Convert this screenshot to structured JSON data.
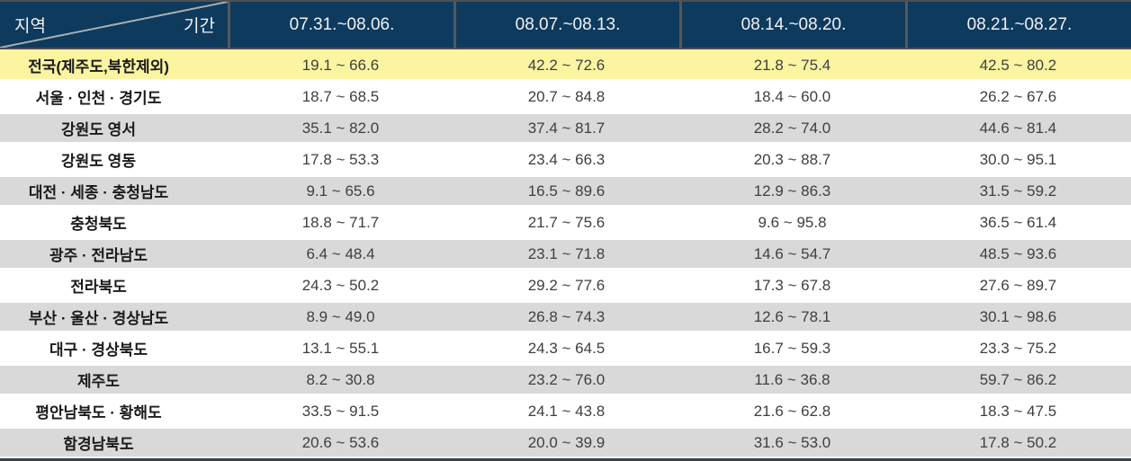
{
  "colors": {
    "header_bg": "#0E3A5E",
    "header_text": "#F2F2F2",
    "dark_border": "#4E5052",
    "separator": "#55585C",
    "diagonal": "#A7ACB1",
    "row_yellow": "#FBF4A1",
    "row_gray": "#D9D9D9",
    "region_text": "#1A1A1A",
    "value_text": "#3F3F3F",
    "bottom_border": "#3E4245"
  },
  "chart_data": {
    "type": "table",
    "corner": {
      "row_dim": "지역",
      "col_dim": "기간"
    },
    "columns": [
      "07.31.~08.06.",
      "08.07.~08.13.",
      "08.14.~08.20.",
      "08.21.~08.27."
    ],
    "rows": [
      {
        "region": "전국(제주도,북한제외)",
        "tone": "yellow",
        "values": [
          "19.1 ~ 66.6",
          "42.2 ~ 72.6",
          "21.8 ~ 75.4",
          "42.5 ~ 80.2"
        ]
      },
      {
        "region": "서울 · 인천 · 경기도",
        "tone": "white",
        "values": [
          "18.7 ~ 68.5",
          "20.7 ~ 84.8",
          "18.4 ~ 60.0",
          "26.2 ~ 67.6"
        ]
      },
      {
        "region": "강원도 영서",
        "tone": "gray",
        "values": [
          "35.1 ~ 82.0",
          "37.4 ~ 81.7",
          "28.2 ~ 74.0",
          "44.6 ~ 81.4"
        ]
      },
      {
        "region": "강원도 영동",
        "tone": "white",
        "values": [
          "17.8 ~ 53.3",
          "23.4 ~ 66.3",
          "20.3 ~ 88.7",
          "30.0 ~ 95.1"
        ]
      },
      {
        "region": "대전 · 세종 · 충청남도",
        "tone": "gray",
        "values": [
          "9.1 ~ 65.6",
          "16.5 ~ 89.6",
          "12.9 ~ 86.3",
          "31.5 ~ 59.2"
        ]
      },
      {
        "region": "충청북도",
        "tone": "white",
        "values": [
          "18.8 ~ 71.7",
          "21.7 ~ 75.6",
          "9.6 ~ 95.8",
          "36.5 ~ 61.4"
        ]
      },
      {
        "region": "광주 · 전라남도",
        "tone": "gray",
        "values": [
          "6.4 ~ 48.4",
          "23.1 ~ 71.8",
          "14.6 ~ 54.7",
          "48.5 ~ 93.6"
        ]
      },
      {
        "region": "전라북도",
        "tone": "white",
        "values": [
          "24.3 ~ 50.2",
          "29.2 ~ 77.6",
          "17.3 ~ 67.8",
          "27.6 ~ 89.7"
        ]
      },
      {
        "region": "부산 · 울산 · 경상남도",
        "tone": "gray",
        "values": [
          "8.9 ~ 49.0",
          "26.8 ~ 74.3",
          "12.6 ~ 78.1",
          "30.1 ~ 98.6"
        ]
      },
      {
        "region": "대구 · 경상북도",
        "tone": "white",
        "values": [
          "13.1 ~ 55.1",
          "24.3 ~ 64.5",
          "16.7 ~ 59.3",
          "23.3 ~ 75.2"
        ]
      },
      {
        "region": "제주도",
        "tone": "gray",
        "values": [
          "8.2 ~ 30.8",
          "23.2 ~ 76.0",
          "11.6 ~ 36.8",
          "59.7 ~ 86.2"
        ]
      },
      {
        "region": "평안남북도 · 황해도",
        "tone": "white",
        "values": [
          "33.5 ~ 91.5",
          "24.1 ~ 43.8",
          "21.6 ~ 62.8",
          "18.3 ~ 47.5"
        ]
      },
      {
        "region": "함경남북도",
        "tone": "gray",
        "values": [
          "20.6 ~ 53.6",
          "20.0 ~ 39.9",
          "31.6 ~ 53.0",
          "17.8 ~ 50.2"
        ]
      }
    ]
  }
}
